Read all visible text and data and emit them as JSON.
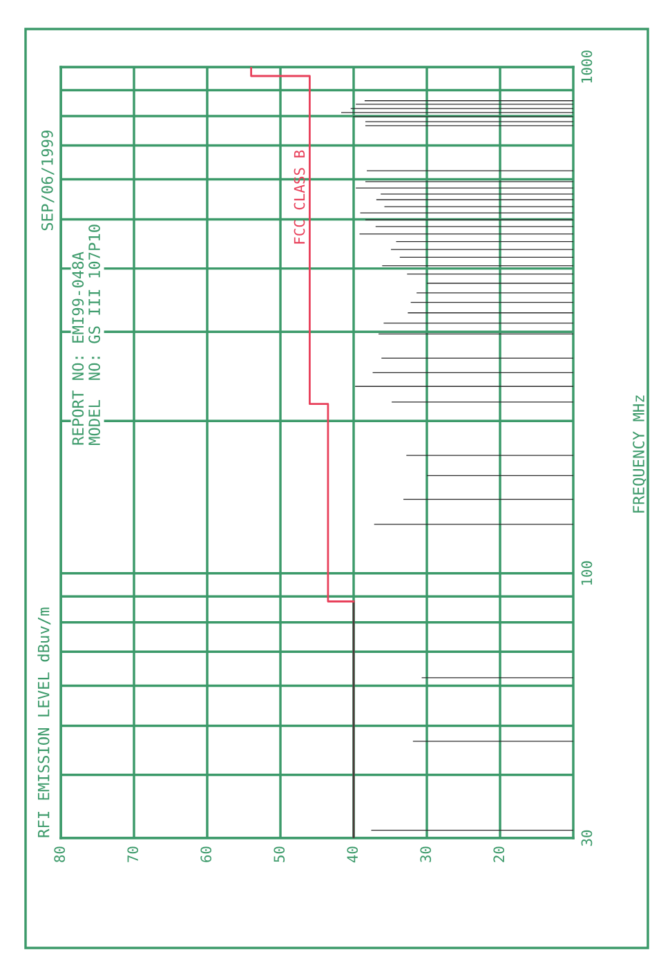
{
  "chart_data": {
    "type": "bar",
    "orientation": "horizontal",
    "annotations": [
      "REPORT NO: EMI99-048A",
      "MODEL  NO: GS III 107P10",
      "SEP/06/1999",
      "RFI EMISSION LEVEL dBuv/m",
      "FREQUENCY MHz"
    ],
    "xlim": [
      80,
      10
    ],
    "xticks": [
      80,
      70,
      60,
      50,
      40,
      30,
      20
    ],
    "ylim": [
      30,
      1000
    ],
    "log": "y",
    "yticks": [
      30,
      {
        "value": 40,
        "label": null
      },
      {
        "value": 50,
        "label": null
      },
      {
        "value": 60,
        "label": null
      },
      {
        "value": 70,
        "label": null
      },
      {
        "value": 80,
        "label": null
      },
      {
        "value": 90,
        "label": null
      },
      100,
      {
        "value": 200,
        "label": null
      },
      {
        "value": 300,
        "label": null
      },
      {
        "value": 400,
        "label": null
      },
      {
        "value": 500,
        "label": null
      },
      {
        "value": 600,
        "label": null
      },
      {
        "value": 700,
        "label": null
      },
      {
        "value": 800,
        "label": null
      },
      {
        "value": 900,
        "label": null
      },
      1000
    ],
    "grid": true,
    "series": [
      {
        "color": "#2a2a2a",
        "x": [
          31.1,
          46.6,
          62.2,
          125,
          140,
          156,
          171,
          218,
          234,
          249,
          266,
          297,
          312,
          327,
          343,
          358,
          374,
          390,
          405,
          421,
          436,
          452,
          468,
          484,
          499,
          515,
          530,
          547,
          561,
          577,
          594,
          624,
          766,
          780,
          798,
          813,
          828,
          844,
          858
        ],
        "values": [
          37.6,
          31.9,
          30.7,
          37.2,
          33.2,
          30.0,
          32.8,
          34.8,
          39.8,
          37.4,
          36.2,
          36.6,
          35.9,
          32.6,
          32.2,
          31.4,
          30.0,
          32.7,
          36.1,
          33.7,
          34.9,
          34.2,
          39.2,
          37.0,
          38.4,
          39.1,
          35.8,
          36.9,
          36.3,
          39.7,
          38.4,
          38.2,
          38.4,
          38.4,
          40.1,
          41.7,
          40.4,
          39.7,
          38.5
        ]
      },
      {
        "type": "step",
        "color": "#4a3838",
        "x": [
          30,
          88
        ],
        "values": [
          40,
          40
        ]
      },
      {
        "type": "step",
        "name": "FCC CLASS B",
        "color": "#e8405a",
        "x": [
          88,
          88,
          216,
          960,
          1000
        ],
        "values": [
          40,
          43.5,
          46,
          54,
          54
        ]
      }
    ]
  }
}
